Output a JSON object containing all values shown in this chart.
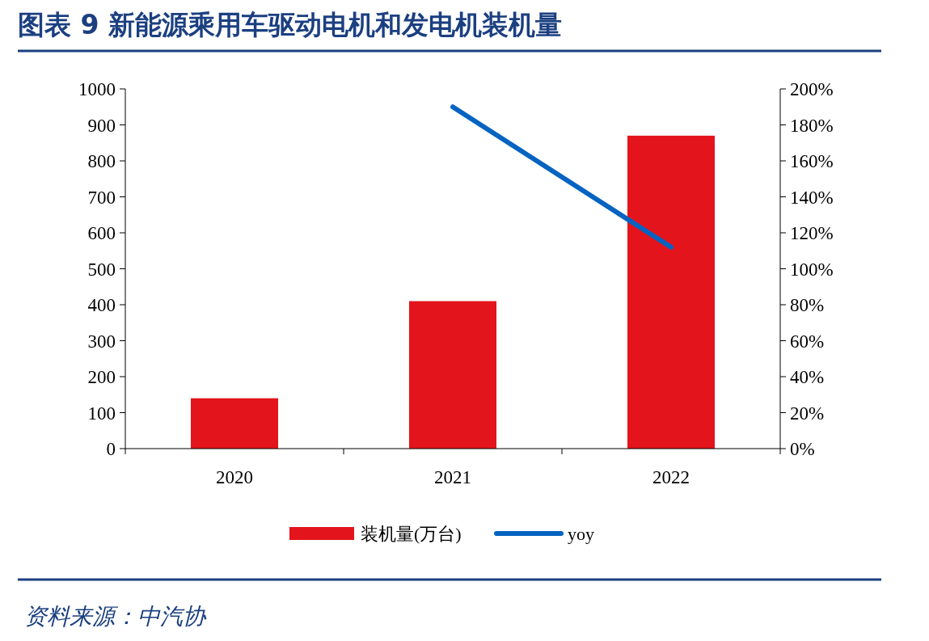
{
  "chart_data": {
    "type": "bar",
    "title": "图表 9  新能源乘用车驱动电机和发电机装机量",
    "categories": [
      "2020",
      "2021",
      "2022"
    ],
    "series": [
      {
        "name": "装机量(万台)",
        "color": "#e3141c",
        "values": [
          140,
          410,
          870
        ]
      },
      {
        "name": "yoy",
        "type": "line",
        "axis": "y2",
        "color": "#0563c1",
        "values": [
          null,
          190,
          112
        ]
      }
    ],
    "ylim": [
      0,
      1000
    ],
    "yticks": [
      0,
      100,
      200,
      300,
      400,
      500,
      600,
      700,
      800,
      900,
      1000
    ],
    "y2lim": [
      0,
      200
    ],
    "y2ticks": [
      {
        "value": 0,
        "label": "0%"
      },
      {
        "value": 20,
        "label": "20%"
      },
      {
        "value": 40,
        "label": "40%"
      },
      {
        "value": 60,
        "label": "60%"
      },
      {
        "value": 80,
        "label": "80%"
      },
      {
        "value": 100,
        "label": "100%"
      },
      {
        "value": 120,
        "label": "120%"
      },
      {
        "value": 140,
        "label": "140%"
      },
      {
        "value": 160,
        "label": "160%"
      },
      {
        "value": 180,
        "label": "180%"
      },
      {
        "value": 200,
        "label": "200%"
      }
    ],
    "legend": "bottom",
    "grid": false,
    "annotations": [
      "资料来源：中汽协"
    ]
  }
}
